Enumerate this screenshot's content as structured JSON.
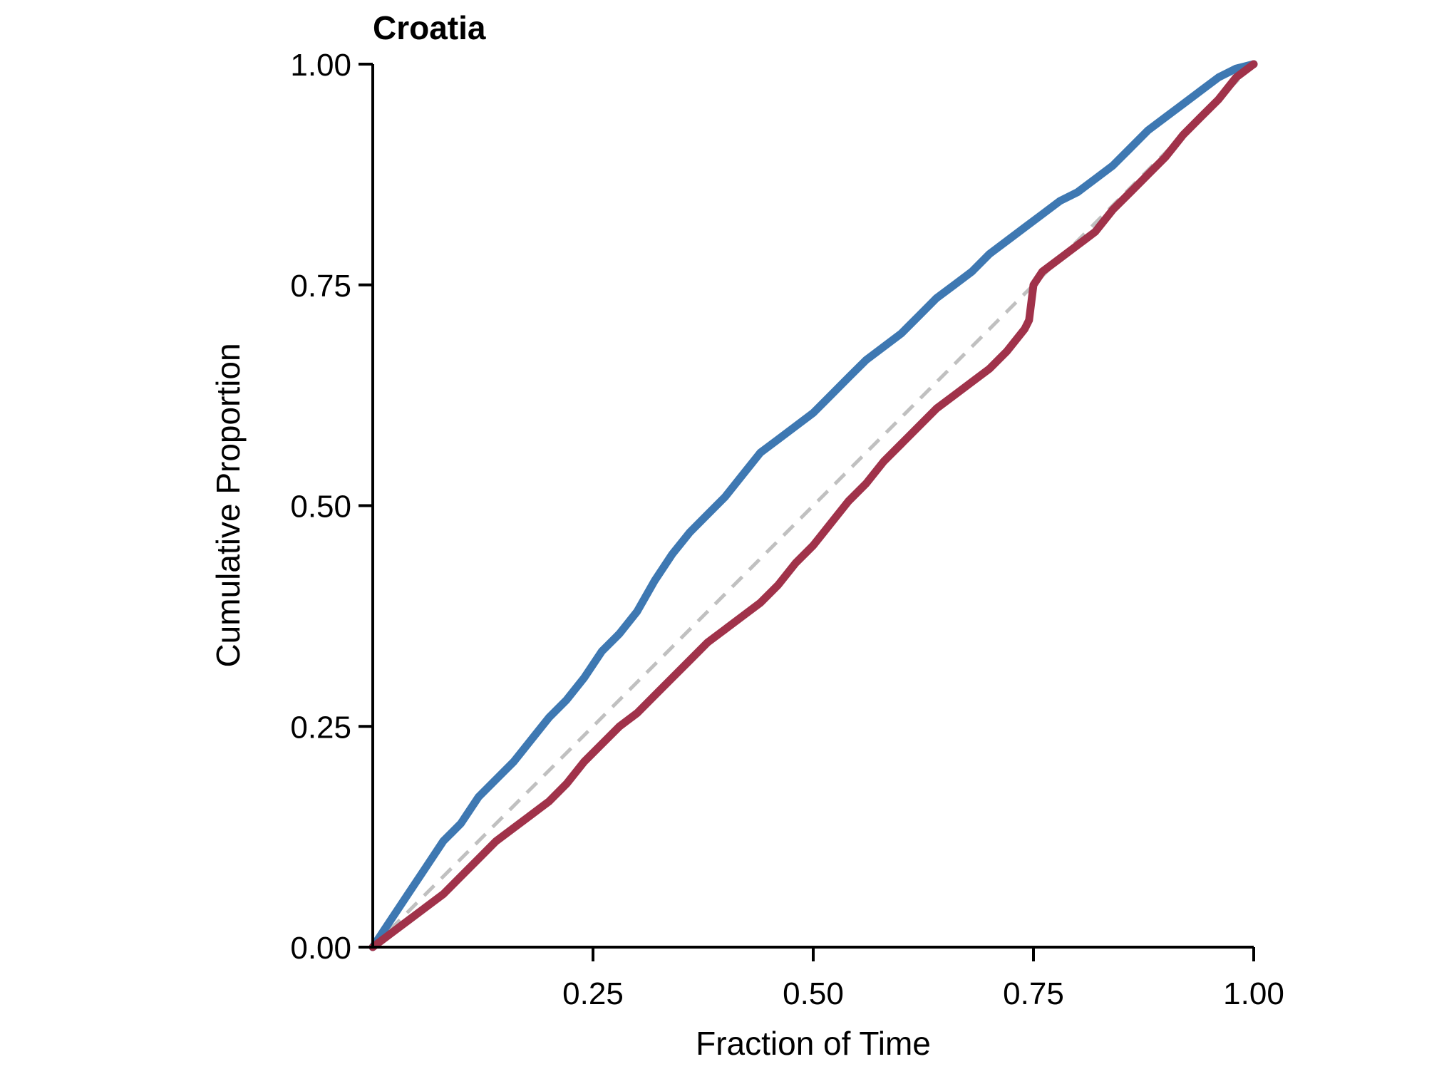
{
  "chart_data": {
    "type": "line",
    "title": "Croatia",
    "xlabel": "Fraction of Time",
    "ylabel": "Cumulative Proportion",
    "xlim": [
      0.0,
      1.0
    ],
    "ylim": [
      0.0,
      1.0
    ],
    "x_ticks": [
      0.25,
      0.5,
      0.75,
      1.0
    ],
    "x_tick_labels": [
      "0.25",
      "0.50",
      "0.75",
      "1.00"
    ],
    "y_ticks": [
      0.0,
      0.25,
      0.5,
      0.75,
      1.0
    ],
    "y_tick_labels": [
      "0.00",
      "0.25",
      "0.50",
      "0.75",
      "1.00"
    ],
    "grid": false,
    "legend": "none",
    "series": [
      {
        "color": "#3E78B2",
        "style": "solid",
        "x": [
          0.0,
          0.02,
          0.04,
          0.06,
          0.08,
          0.1,
          0.12,
          0.14,
          0.16,
          0.18,
          0.2,
          0.22,
          0.24,
          0.26,
          0.28,
          0.3,
          0.32,
          0.34,
          0.36,
          0.38,
          0.4,
          0.42,
          0.44,
          0.46,
          0.48,
          0.5,
          0.52,
          0.54,
          0.56,
          0.58,
          0.6,
          0.62,
          0.64,
          0.66,
          0.68,
          0.7,
          0.72,
          0.74,
          0.76,
          0.78,
          0.8,
          0.82,
          0.84,
          0.86,
          0.88,
          0.9,
          0.92,
          0.94,
          0.96,
          0.98,
          1.0
        ],
        "y": [
          0.0,
          0.03,
          0.06,
          0.09,
          0.12,
          0.14,
          0.17,
          0.19,
          0.21,
          0.235,
          0.26,
          0.28,
          0.305,
          0.335,
          0.355,
          0.38,
          0.415,
          0.445,
          0.47,
          0.49,
          0.51,
          0.535,
          0.56,
          0.575,
          0.59,
          0.605,
          0.625,
          0.645,
          0.665,
          0.68,
          0.695,
          0.715,
          0.735,
          0.75,
          0.765,
          0.785,
          0.8,
          0.815,
          0.83,
          0.845,
          0.855,
          0.87,
          0.885,
          0.905,
          0.925,
          0.94,
          0.955,
          0.97,
          0.985,
          0.995,
          1.0
        ]
      },
      {
        "color": "#A0324A",
        "style": "solid",
        "x": [
          0.0,
          0.02,
          0.04,
          0.06,
          0.08,
          0.1,
          0.12,
          0.14,
          0.16,
          0.18,
          0.2,
          0.22,
          0.24,
          0.26,
          0.28,
          0.3,
          0.32,
          0.34,
          0.36,
          0.38,
          0.4,
          0.42,
          0.44,
          0.46,
          0.48,
          0.5,
          0.52,
          0.54,
          0.56,
          0.58,
          0.6,
          0.62,
          0.64,
          0.66,
          0.68,
          0.7,
          0.72,
          0.74,
          0.745,
          0.75,
          0.76,
          0.78,
          0.8,
          0.82,
          0.84,
          0.86,
          0.88,
          0.9,
          0.92,
          0.94,
          0.96,
          0.98,
          1.0
        ],
        "y": [
          0.0,
          0.015,
          0.03,
          0.045,
          0.06,
          0.08,
          0.1,
          0.12,
          0.135,
          0.15,
          0.165,
          0.185,
          0.21,
          0.23,
          0.25,
          0.265,
          0.285,
          0.305,
          0.325,
          0.345,
          0.36,
          0.375,
          0.39,
          0.41,
          0.435,
          0.455,
          0.48,
          0.505,
          0.525,
          0.55,
          0.57,
          0.59,
          0.61,
          0.625,
          0.64,
          0.655,
          0.675,
          0.7,
          0.71,
          0.75,
          0.765,
          0.78,
          0.795,
          0.81,
          0.835,
          0.855,
          0.875,
          0.895,
          0.92,
          0.94,
          0.96,
          0.985,
          1.0
        ]
      },
      {
        "color": "#C0C0C0",
        "style": "dashed",
        "x": [
          0.0,
          1.0
        ],
        "y": [
          0.0,
          1.0
        ]
      }
    ]
  }
}
